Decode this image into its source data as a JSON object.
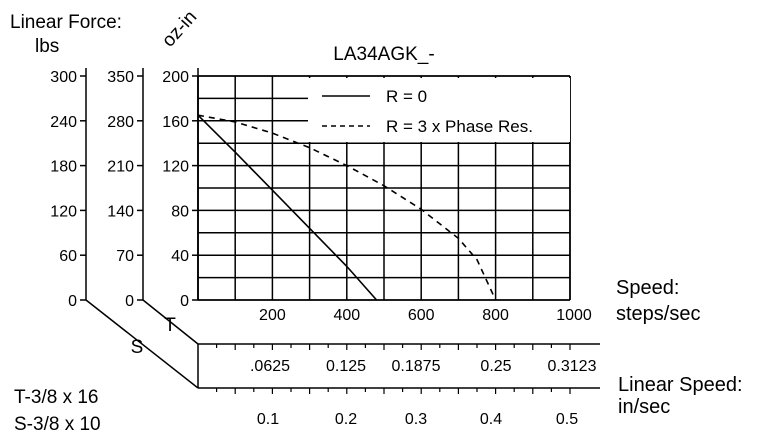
{
  "chart_data": {
    "type": "line",
    "title": "LA34AGK_-",
    "y_axes": [
      {
        "title": "Linear Force:",
        "unit": "lbs",
        "ticks": [
          0,
          60,
          120,
          180,
          240,
          300
        ]
      },
      {
        "title": "",
        "unit": "",
        "ticks": [
          0,
          70,
          140,
          210,
          280,
          350
        ]
      },
      {
        "title": "",
        "unit": "oz-in",
        "ticks": [
          0,
          40,
          80,
          120,
          160,
          200
        ],
        "ylim": [
          0,
          200
        ]
      }
    ],
    "x_axis": {
      "label": "Speed:",
      "unit": "steps/sec",
      "ticks": [
        200,
        400,
        600,
        800,
        1000
      ],
      "xlim": [
        0,
        1000
      ]
    },
    "linear_speed_axis": {
      "label": "Linear Speed:",
      "unit": "in/sec",
      "T_label": "T",
      "S_label": "S",
      "T_ticks": [
        ".0625",
        "0.125",
        "0.1875",
        "0.25",
        "0.3123"
      ],
      "S_ticks": [
        "0.1",
        "0.2",
        "0.3",
        "0.4",
        "0.5"
      ]
    },
    "screw_notes": [
      "T-3/8 x 16",
      "S-3/8 x 10"
    ],
    "legend_position": "top-right",
    "grid": true,
    "series": [
      {
        "name": "R = 0",
        "style": "solid",
        "x": [
          0,
          100,
          200,
          300,
          400,
          480
        ],
        "y": [
          165,
          132,
          98,
          64,
          30,
          0
        ]
      },
      {
        "name": "R = 3 x Phase Res.",
        "style": "dashed",
        "x": [
          0,
          100,
          200,
          300,
          400,
          500,
          600,
          700,
          750,
          800
        ],
        "y": [
          165,
          159,
          149,
          136,
          120,
          102,
          81,
          55,
          36,
          0
        ]
      }
    ]
  }
}
